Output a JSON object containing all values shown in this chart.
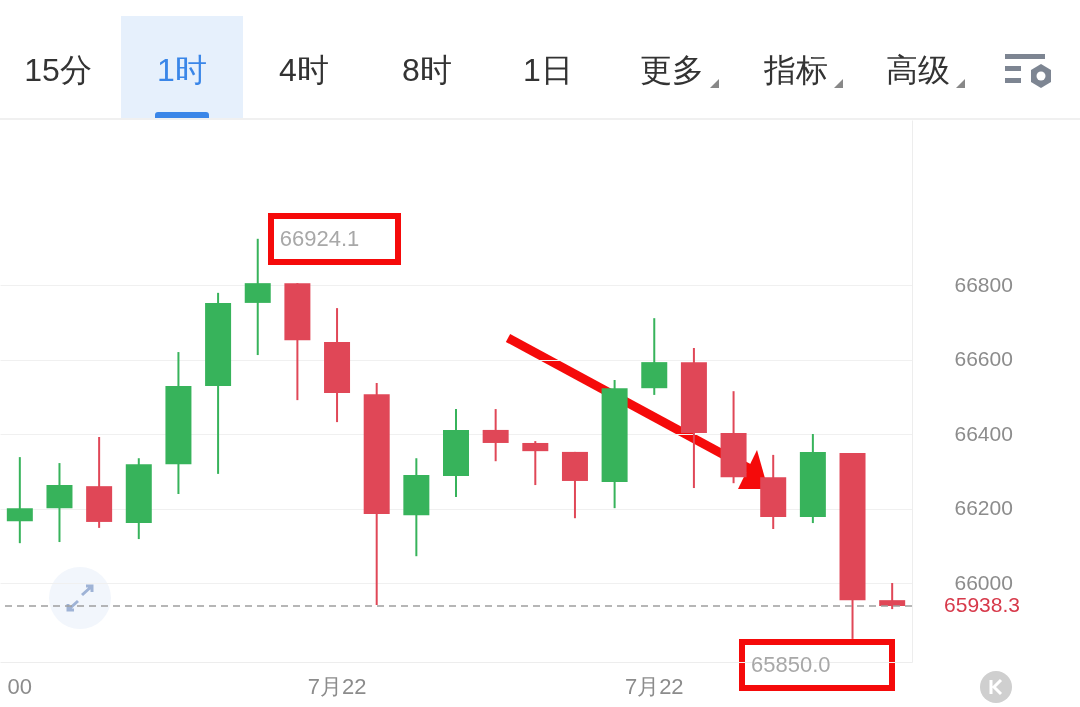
{
  "chart_data": {
    "type": "candlestick",
    "categories": [
      "00",
      null,
      null,
      null,
      null,
      null,
      null,
      null,
      "7月22",
      null,
      null,
      null,
      null,
      null,
      null,
      null,
      "7月22",
      null,
      null,
      null,
      null,
      null,
      null
    ],
    "ohlc": [
      [
        66166,
        66338,
        66107,
        66201
      ],
      [
        66201,
        66322,
        66110,
        66263
      ],
      [
        66260,
        66392,
        66148,
        66164
      ],
      [
        66161,
        66335,
        66118,
        66319
      ],
      [
        66319,
        66620,
        66239,
        66529
      ],
      [
        66529,
        66779,
        66293,
        66752
      ],
      [
        66752,
        66924.1,
        66612,
        66805
      ],
      [
        66805,
        66805,
        66491,
        66652
      ],
      [
        66647,
        66738,
        66432,
        66510
      ],
      [
        66507,
        66537,
        65941,
        66185
      ],
      [
        66182,
        66335,
        66072,
        66290
      ],
      [
        66287,
        66467,
        66231,
        66411
      ],
      [
        66411,
        66467,
        66327,
        66376
      ],
      [
        66376,
        66381,
        66263,
        66354
      ],
      [
        66352,
        66352,
        66174,
        66274
      ],
      [
        66271,
        66545,
        66201,
        66523
      ],
      [
        66523,
        66711,
        66505,
        66593
      ],
      [
        66593,
        66631,
        66255,
        66403
      ],
      [
        66403,
        66515,
        66268,
        66284
      ],
      [
        66284,
        66344,
        66145,
        66177
      ],
      [
        66177,
        66400,
        66161,
        66352
      ],
      [
        66349,
        66349,
        65850,
        65954
      ],
      [
        65954,
        66000,
        65930,
        65938.3
      ]
    ],
    "colors": [
      "#37b35b",
      "#37b35b",
      "#e04757",
      "#37b35b",
      "#37b35b",
      "#37b35b",
      "#37b35b",
      "#e04757",
      "#e04757",
      "#e04757",
      "#37b35b",
      "#37b35b",
      "#e04757",
      "#e04757",
      "#e04757",
      "#37b35b",
      "#37b35b",
      "#e04757",
      "#e04757",
      "#e04757",
      "#37b35b",
      "#e04757",
      "#e04757"
    ],
    "ylim": [
      65788,
      67243
    ],
    "yticks": [
      66000,
      66200,
      66400,
      66600,
      66800
    ],
    "grid": "y",
    "ref_lines": [
      {
        "axis": "y",
        "value": 65938.3,
        "label": "65938.3",
        "color": "#9e9e9e",
        "line_style": "dashed"
      }
    ],
    "annotations": [
      "15分",
      "1时",
      "4时",
      "8时",
      "1日",
      "更多",
      "指标",
      "高级",
      "66924.1",
      "65850.0"
    ]
  }
}
